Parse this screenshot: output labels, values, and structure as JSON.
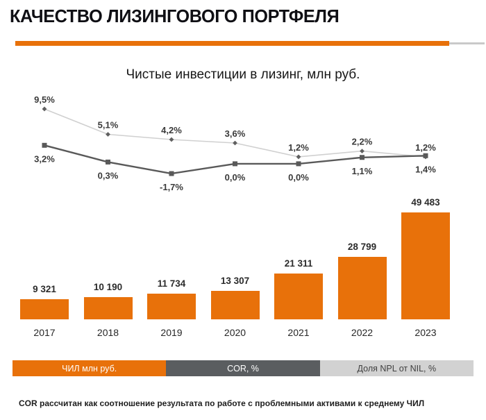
{
  "page": {
    "title": "КАЧЕСТВО ЛИЗИНГОВОГО ПОРТФЕЛЯ",
    "footnote": "COR рассчитан как соотношение результата по работе с проблемными активами к среднему ЧИЛ"
  },
  "colors": {
    "accent_orange": "#E8710A",
    "line_dark": "#595959",
    "line_light": "#D0D0D0",
    "marker_light_series": "#606060",
    "data_label_text": "#3A3A3A",
    "legend_dark_bg": "#5A5D60",
    "legend_light_bg": "#D2D2D2"
  },
  "chart_data": {
    "type": "combo-bar-line",
    "title": "Чистые инвестиции в лизинг, млн руб.",
    "categories": [
      "2017",
      "2018",
      "2019",
      "2020",
      "2021",
      "2022",
      "2023"
    ],
    "bar_series": {
      "name": "ЧИЛ млн руб.",
      "values": [
        9321,
        10190,
        11734,
        13307,
        21311,
        28799,
        49483
      ],
      "labels": [
        "9 321",
        "10 190",
        "11 734",
        "13 307",
        "21 311",
        "28 799",
        "49 483"
      ],
      "color": "#E8710A",
      "ylim": [
        0,
        52000
      ]
    },
    "line_series": [
      {
        "name": "Доля NPL от NIL, %",
        "values": [
          9.5,
          5.1,
          4.2,
          3.6,
          1.2,
          2.2,
          1.2
        ],
        "labels": [
          "9,5%",
          "5,1%",
          "4,2%",
          "3,6%",
          "1,2%",
          "2,2%",
          "1,2%"
        ],
        "line_color": "#D0D0D0",
        "marker": "diamond",
        "marker_color": "#606060",
        "label_position": "above"
      },
      {
        "name": "COR, %",
        "values": [
          3.2,
          0.3,
          -1.7,
          0.0,
          0.0,
          1.1,
          1.4
        ],
        "labels": [
          "3,2%",
          "0,3%",
          "-1,7%",
          "0,0%",
          "0,0%",
          "1,1%",
          "1,4%"
        ],
        "line_color": "#595959",
        "marker": "square",
        "marker_color": "#595959",
        "label_position": "below"
      }
    ],
    "grid": false,
    "legend_position": "bottom"
  },
  "legend": {
    "items": [
      {
        "label": "ЧИЛ млн руб.",
        "bg": "#E8710A",
        "text": "#FFFFFF"
      },
      {
        "label": "COR, %",
        "bg": "#5A5D60",
        "text": "#FFFFFF"
      },
      {
        "label": "Доля NPL от NIL, %",
        "bg": "#D2D2D2",
        "text": "#3F3F3F"
      }
    ]
  }
}
